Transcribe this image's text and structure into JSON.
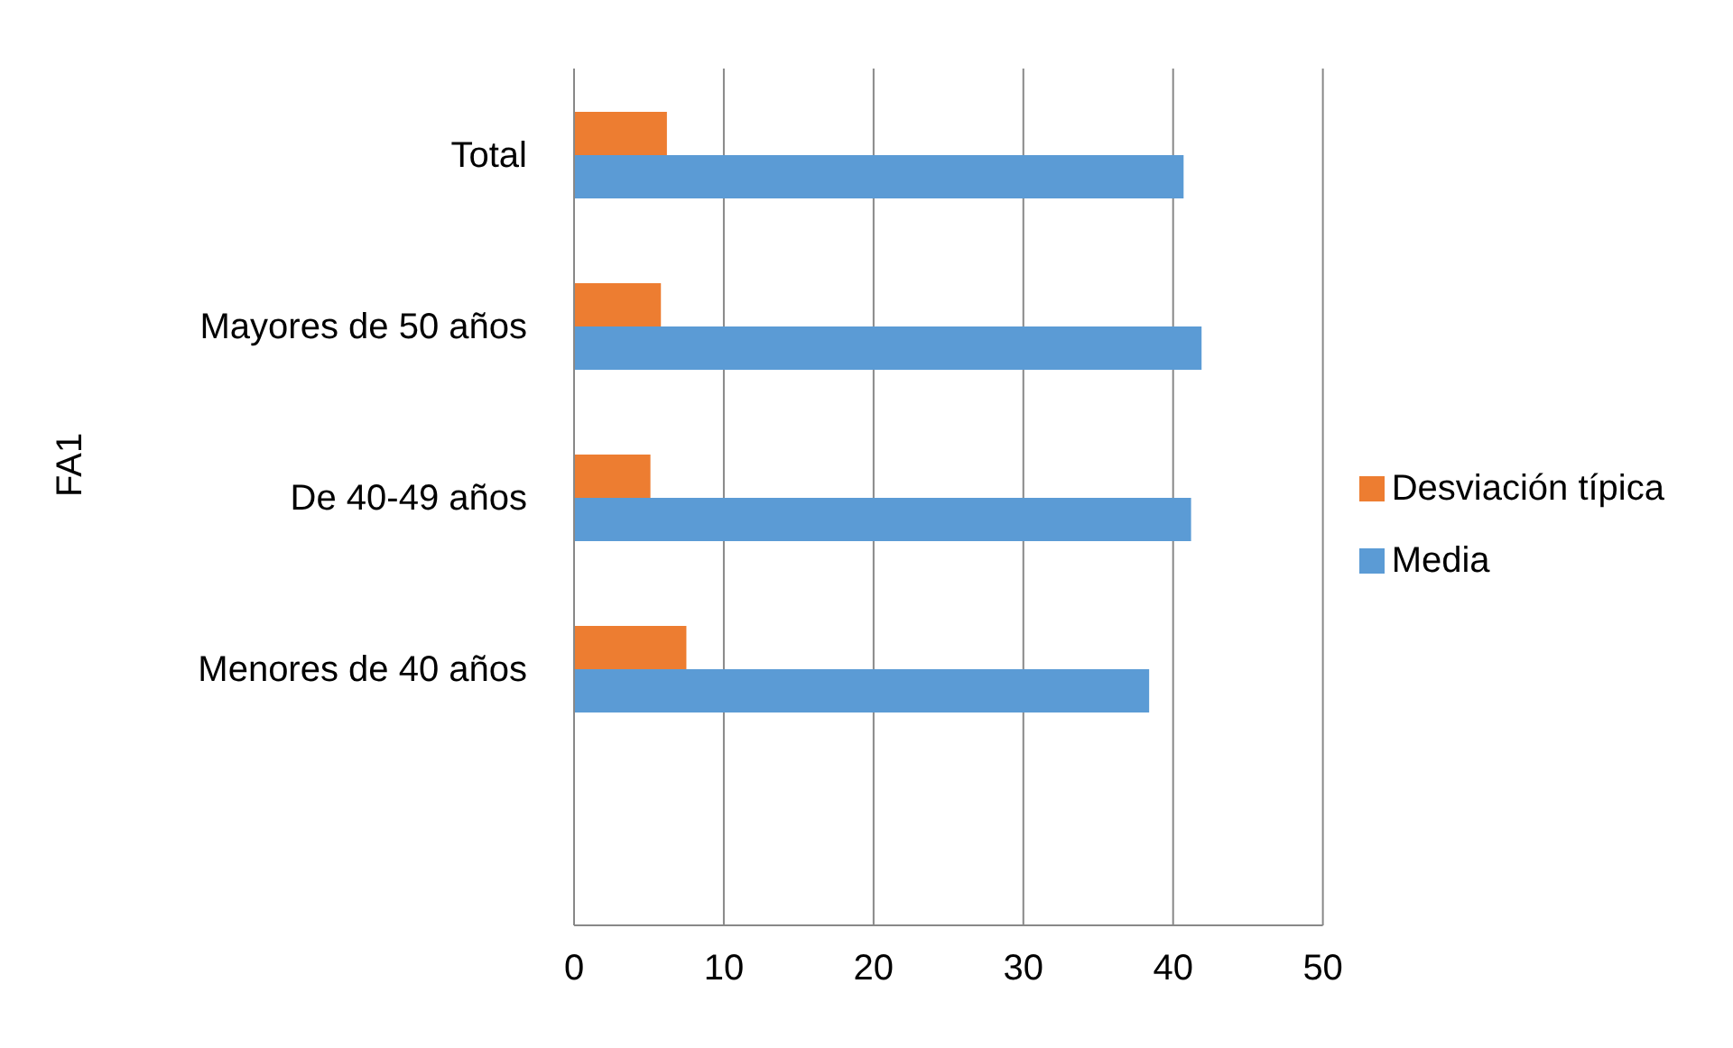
{
  "chart_data": {
    "type": "bar",
    "orientation": "horizontal",
    "ylabel": "FA1",
    "categories": [
      "Total",
      "Mayores de 50 años",
      "De 40-49 años",
      "Menores de 40 años",
      null
    ],
    "series": [
      {
        "name": "Desviación típica",
        "color": "#ed7d31",
        "values": [
          6.2,
          5.8,
          5.1,
          7.5,
          null
        ]
      },
      {
        "name": "Media",
        "color": "#5b9bd5",
        "values": [
          40.7,
          41.9,
          41.2,
          38.4,
          null
        ]
      }
    ],
    "xlim": [
      0,
      50
    ],
    "xticks": [
      0,
      10,
      20,
      30,
      40,
      50
    ],
    "grid": "x",
    "legend": "right"
  }
}
